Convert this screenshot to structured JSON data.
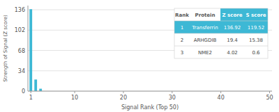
{
  "chart_data": {
    "type": "bar",
    "x": [
      1,
      2,
      3,
      4,
      5,
      6,
      7,
      8,
      9,
      10,
      11,
      12,
      13,
      14,
      15,
      16,
      17,
      18,
      19,
      20,
      21,
      22,
      23,
      24,
      25,
      26,
      27,
      28,
      29,
      30,
      31,
      32,
      33,
      34,
      35,
      36,
      37,
      38,
      39,
      40,
      41,
      42,
      43,
      44,
      45,
      46,
      47,
      48,
      49,
      50
    ],
    "values": [
      136.92,
      19.4,
      4.02,
      0,
      0,
      0,
      0,
      0,
      0,
      0,
      0,
      0,
      0,
      0,
      0,
      0,
      0,
      0,
      0,
      0,
      0,
      0,
      0,
      0,
      0,
      0,
      0,
      0,
      0,
      0,
      0,
      0,
      0,
      0,
      0,
      0,
      0,
      0,
      0,
      0,
      0,
      0,
      0,
      0,
      0,
      0,
      0,
      0,
      0,
      0
    ],
    "color": "#3db8d5",
    "xlim": [
      0.4,
      50.5
    ],
    "ylim": [
      0,
      143
    ],
    "xticks": [
      1,
      10,
      20,
      30,
      40,
      50
    ],
    "yticks": [
      0,
      34,
      68,
      102,
      136
    ],
    "xlabel": "Signal Rank (Top 50)",
    "ylabel": "Strength of Signal (Z score)",
    "grid": true,
    "table": [
      [
        "Rank",
        "Protein",
        "Z score",
        "S score"
      ],
      [
        "1",
        "Transferrin",
        "136.92",
        "119.52"
      ],
      [
        "2",
        "ARHGDIB",
        "19.4",
        "15.38"
      ],
      [
        "3",
        "NME2",
        "4.02",
        "0.6"
      ]
    ]
  }
}
